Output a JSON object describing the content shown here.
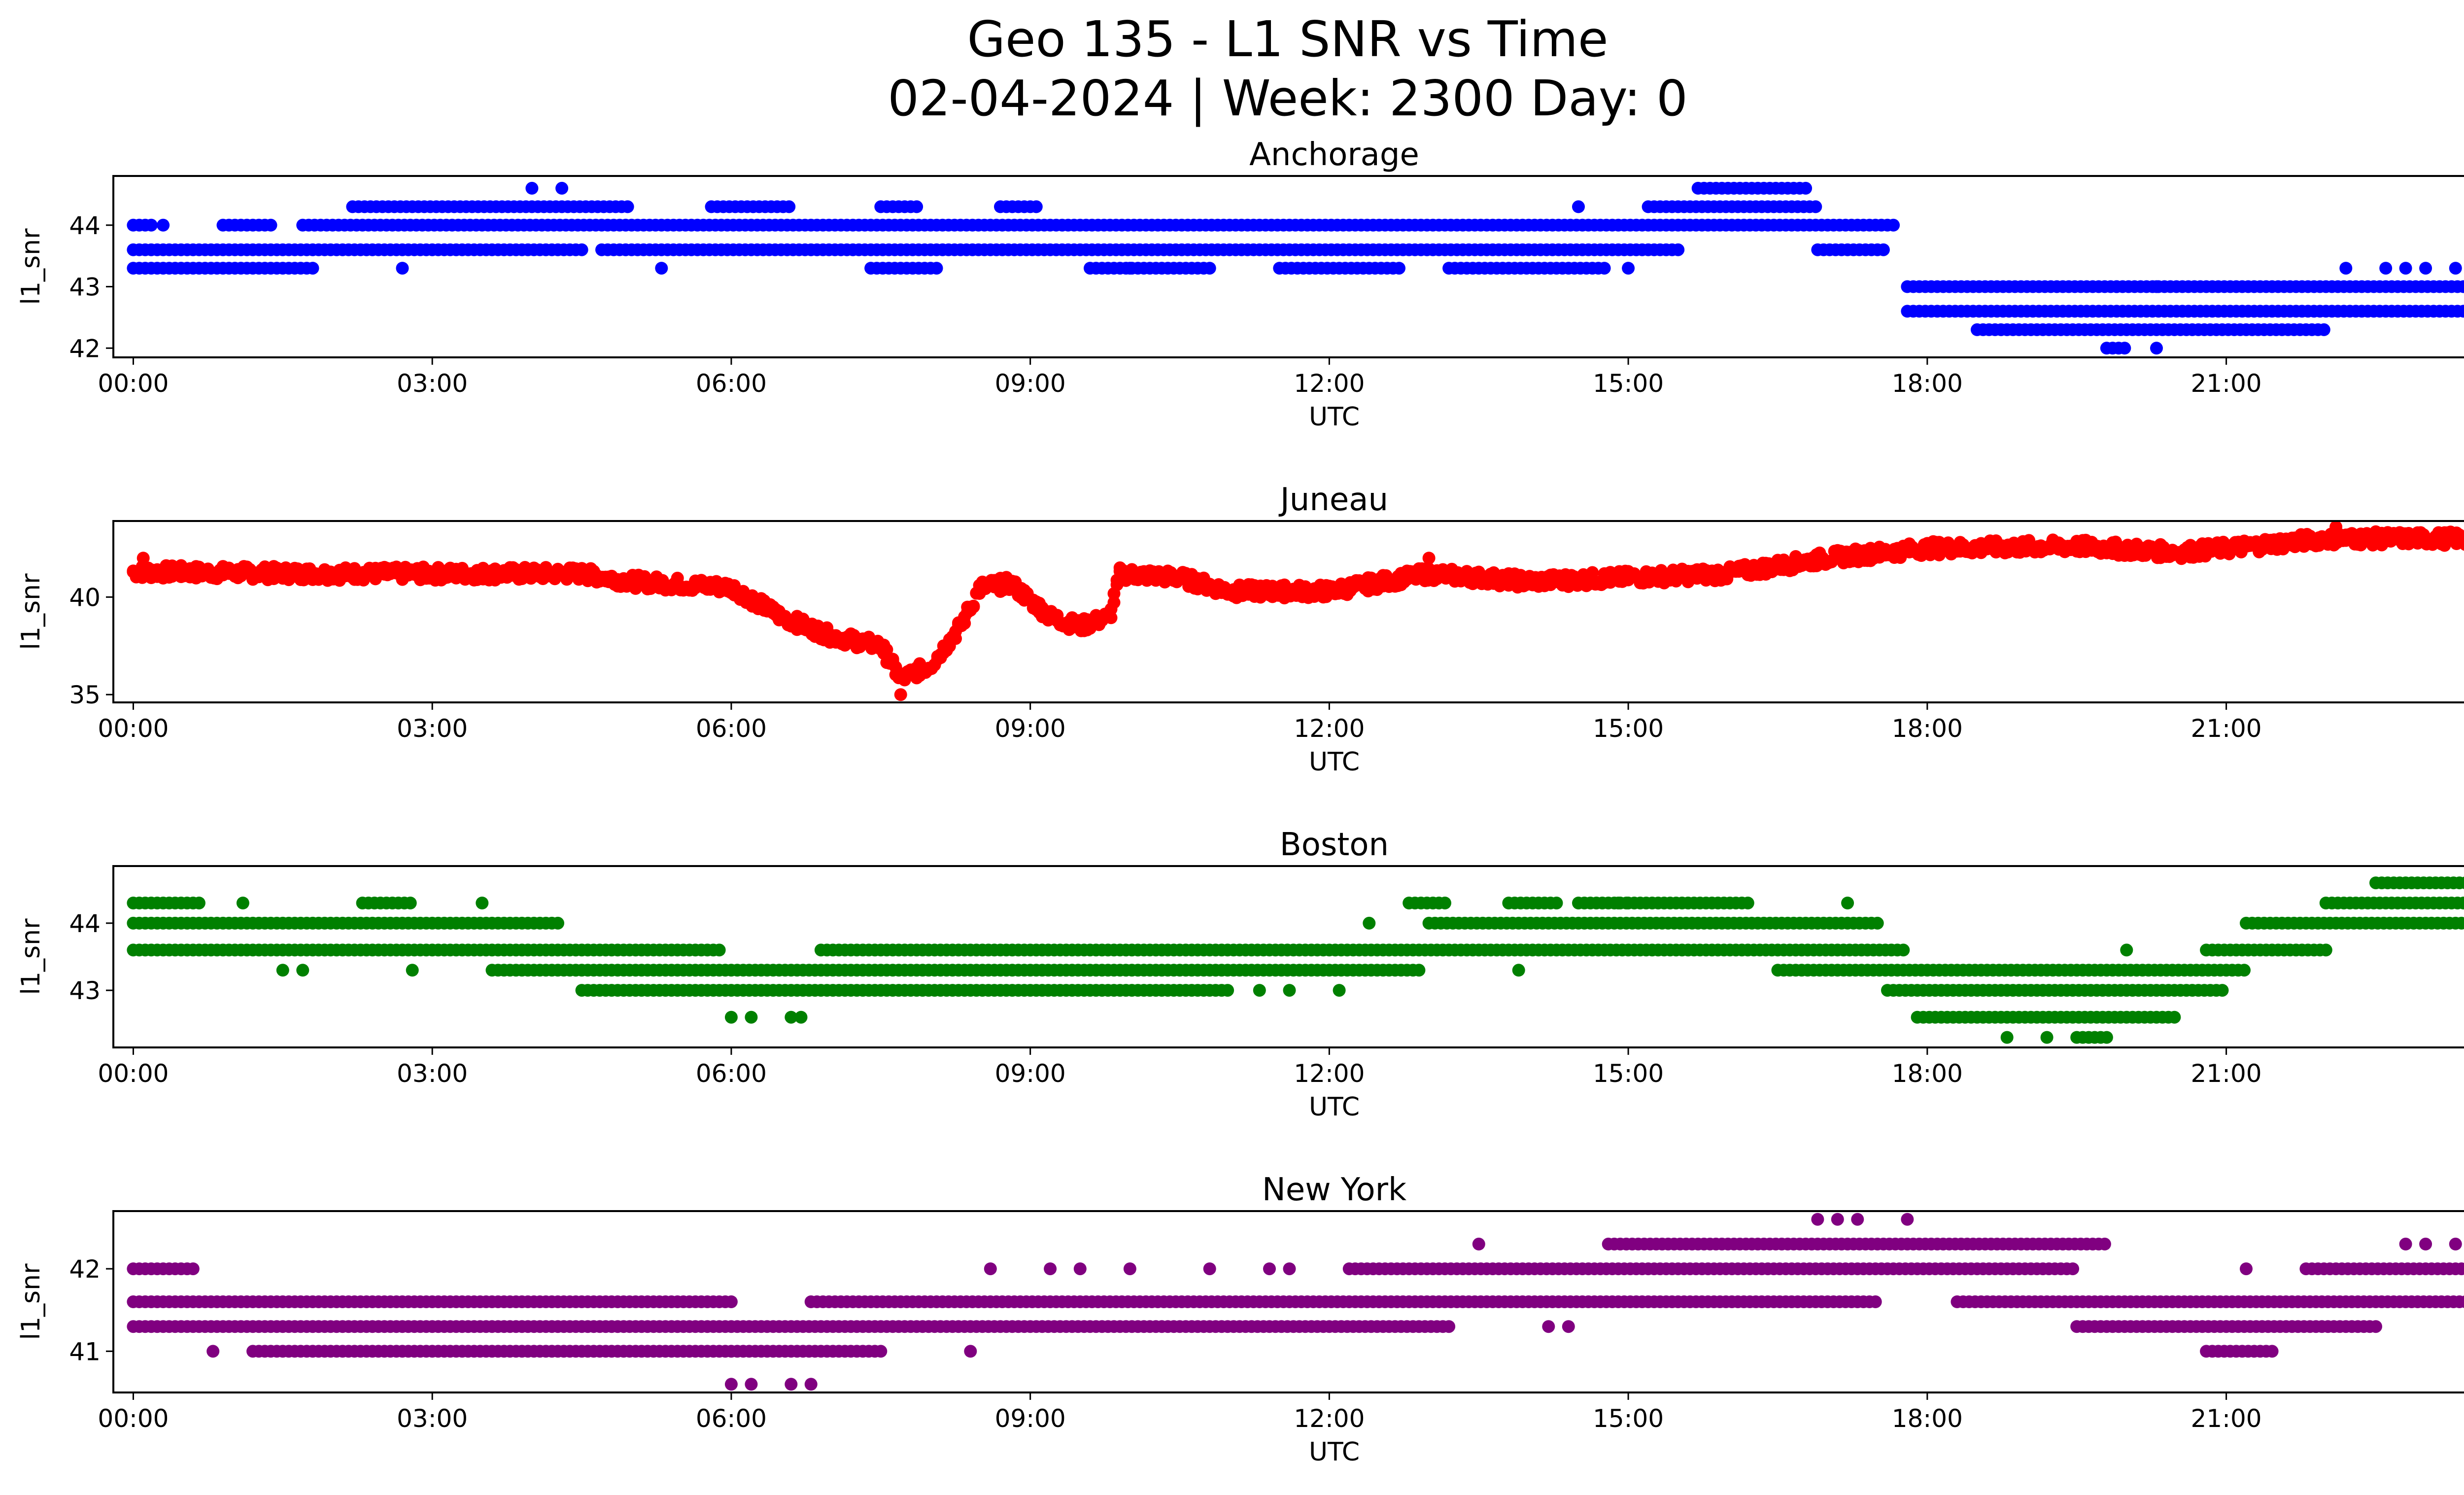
{
  "figure": {
    "title_line1": "Geo 135 - L1 SNR vs Time",
    "title_line2": "02-04-2024 | Week: 2300 Day: 0"
  },
  "chart_data": [
    {
      "type": "scatter",
      "title": "Anchorage",
      "xlabel": "UTC",
      "ylabel": "l1_snr",
      "color": "#0000ff",
      "x_unit": "hours",
      "x_ticks": [
        "00:00",
        "03:00",
        "06:00",
        "09:00",
        "12:00",
        "15:00",
        "18:00",
        "21:00",
        "00:00"
      ],
      "xlim": [
        -0.2,
        24.3
      ],
      "ylim": [
        41.85,
        44.8
      ],
      "y_ticks": [
        42,
        43,
        44
      ],
      "series": [
        {
          "y": 43.3,
          "spans": [
            [
              0.0,
              1.8
            ],
            [
              7.4,
              8.1
            ],
            [
              9.6,
              10.8
            ],
            [
              11.5,
              12.7
            ],
            [
              13.2,
              14.8
            ]
          ]
        },
        {
          "y": 43.6,
          "spans": [
            [
              0.0,
              4.5
            ],
            [
              4.7,
              15.5
            ],
            [
              16.9,
              17.6
            ]
          ]
        },
        {
          "y": 44.0,
          "spans": [
            [
              0.0,
              0.2
            ],
            [
              0.9,
              1.4
            ],
            [
              1.7,
              17.7
            ]
          ]
        },
        {
          "y": 44.3,
          "spans": [
            [
              2.2,
              5.0
            ],
            [
              5.8,
              6.6
            ],
            [
              7.5,
              7.9
            ],
            [
              8.7,
              9.1
            ],
            [
              15.2,
              16.9
            ]
          ]
        },
        {
          "y": 44.6,
          "spans": [
            [
              15.7,
              16.8
            ]
          ]
        },
        {
          "y": 43.0,
          "spans": [
            [
              17.8,
              24.0
            ]
          ]
        },
        {
          "y": 42.6,
          "spans": [
            [
              17.8,
              24.0
            ]
          ]
        },
        {
          "y": 42.3,
          "spans": [
            [
              18.5,
              22.0
            ]
          ]
        },
        {
          "y": 42.0,
          "spans": [
            [
              19.8,
              20.0
            ]
          ]
        }
      ],
      "points": [
        [
          0.3,
          44.0
        ],
        [
          4.0,
          44.6
        ],
        [
          4.3,
          44.6
        ],
        [
          2.7,
          43.3
        ],
        [
          5.3,
          43.3
        ],
        [
          10.0,
          43.3
        ],
        [
          14.5,
          44.3
        ],
        [
          15.0,
          43.3
        ],
        [
          19.9,
          43.0
        ],
        [
          20.3,
          43.0
        ],
        [
          22.2,
          43.3
        ],
        [
          22.6,
          43.3
        ],
        [
          22.8,
          43.3
        ],
        [
          23.0,
          43.3
        ],
        [
          23.3,
          43.3
        ],
        [
          20.3,
          42.0
        ],
        [
          23.8,
          42.3
        ]
      ]
    },
    {
      "type": "scatter",
      "title": "Juneau",
      "xlabel": "UTC",
      "ylabel": "l1_snr",
      "color": "#ff0000",
      "x_unit": "hours",
      "x_ticks": [
        "00:00",
        "03:00",
        "06:00",
        "09:00",
        "12:00",
        "15:00",
        "18:00",
        "21:00",
        "00:00"
      ],
      "xlim": [
        -0.2,
        24.3
      ],
      "ylim": [
        34.6,
        43.9
      ],
      "y_ticks": [
        35,
        40
      ],
      "profile": [
        [
          0.0,
          41.3
        ],
        [
          2.0,
          41.2
        ],
        [
          4.5,
          41.2
        ],
        [
          5.0,
          40.8
        ],
        [
          6.0,
          40.5
        ],
        [
          6.5,
          39.0
        ],
        [
          7.0,
          38.0
        ],
        [
          7.5,
          37.5
        ],
        [
          7.7,
          35.8
        ],
        [
          8.0,
          36.5
        ],
        [
          8.3,
          38.5
        ],
        [
          8.5,
          40.5
        ],
        [
          8.8,
          40.7
        ],
        [
          9.2,
          39.0
        ],
        [
          9.5,
          38.5
        ],
        [
          9.8,
          39.0
        ],
        [
          9.9,
          41.2
        ],
        [
          10.5,
          41.0
        ],
        [
          11.0,
          40.3
        ],
        [
          12.0,
          40.3
        ],
        [
          13.0,
          41.2
        ],
        [
          14.0,
          40.8
        ],
        [
          15.0,
          41.0
        ],
        [
          16.0,
          41.2
        ],
        [
          17.0,
          42.0
        ],
        [
          18.0,
          42.5
        ],
        [
          19.5,
          42.6
        ],
        [
          20.5,
          42.3
        ],
        [
          21.0,
          42.5
        ],
        [
          22.0,
          43.0
        ],
        [
          24.0,
          43.0
        ]
      ],
      "spread": 0.35,
      "points": [
        [
          0.1,
          42.0
        ],
        [
          7.7,
          35.0
        ],
        [
          13.0,
          42.0
        ],
        [
          22.1,
          43.6
        ]
      ]
    },
    {
      "type": "scatter",
      "title": "Boston",
      "xlabel": "UTC",
      "ylabel": "l1_snr",
      "color": "#008000",
      "x_unit": "hours",
      "x_ticks": [
        "00:00",
        "03:00",
        "06:00",
        "09:00",
        "12:00",
        "15:00",
        "18:00",
        "21:00",
        "00:00"
      ],
      "xlim": [
        -0.2,
        24.3
      ],
      "ylim": [
        42.15,
        44.85
      ],
      "y_ticks": [
        43,
        44
      ],
      "series": [
        {
          "y": 44.3,
          "spans": [
            [
              0.0,
              0.7
            ],
            [
              2.3,
              2.8
            ],
            [
              12.8,
              13.2
            ],
            [
              13.8,
              14.3
            ],
            [
              14.5,
              15.0
            ],
            [
              15.0,
              16.2
            ],
            [
              22.0,
              24.0
            ]
          ]
        },
        {
          "y": 44.0,
          "spans": [
            [
              0.0,
              4.3
            ],
            [
              13.0,
              17.5
            ],
            [
              21.2,
              24.0
            ]
          ]
        },
        {
          "y": 43.6,
          "spans": [
            [
              0.0,
              5.9
            ],
            [
              6.9,
              17.8
            ],
            [
              20.8,
              22.0
            ]
          ]
        },
        {
          "y": 43.3,
          "spans": [
            [
              3.6,
              12.9
            ],
            [
              16.5,
              21.2
            ]
          ]
        },
        {
          "y": 43.0,
          "spans": [
            [
              4.5,
              11.0
            ],
            [
              17.6,
              21.0
            ]
          ]
        },
        {
          "y": 42.6,
          "spans": [
            [
              17.9,
              20.5
            ]
          ]
        },
        {
          "y": 42.3,
          "spans": [
            [
              19.5,
              19.8
            ]
          ]
        },
        {
          "y": 44.6,
          "spans": [
            [
              22.5,
              24.0
            ]
          ]
        }
      ],
      "points": [
        [
          1.1,
          44.3
        ],
        [
          3.5,
          44.3
        ],
        [
          1.5,
          43.3
        ],
        [
          1.7,
          43.3
        ],
        [
          2.8,
          43.3
        ],
        [
          6.0,
          42.6
        ],
        [
          6.2,
          42.6
        ],
        [
          6.6,
          42.6
        ],
        [
          6.7,
          42.6
        ],
        [
          11.3,
          43.0
        ],
        [
          11.6,
          43.0
        ],
        [
          12.1,
          43.0
        ],
        [
          13.9,
          43.3
        ],
        [
          14.9,
          44.3
        ],
        [
          17.2,
          44.3
        ],
        [
          12.4,
          44.0
        ],
        [
          18.8,
          42.3
        ],
        [
          19.2,
          42.3
        ],
        [
          20.0,
          43.6
        ],
        [
          23.8,
          44.0
        ]
      ]
    },
    {
      "type": "scatter",
      "title": "New York",
      "xlabel": "UTC",
      "ylabel": "l1_snr",
      "color": "#800080",
      "x_unit": "hours",
      "x_ticks": [
        "00:00",
        "03:00",
        "06:00",
        "09:00",
        "12:00",
        "15:00",
        "18:00",
        "21:00",
        "00:00"
      ],
      "xlim": [
        -0.2,
        24.3
      ],
      "ylim": [
        40.5,
        42.7
      ],
      "y_ticks": [
        41,
        42
      ],
      "series": [
        {
          "y": 42.0,
          "spans": [
            [
              0.0,
              0.6
            ],
            [
              12.2,
              19.5
            ],
            [
              21.8,
              24.0
            ]
          ]
        },
        {
          "y": 41.6,
          "spans": [
            [
              0.0,
              6.0
            ],
            [
              6.8,
              17.5
            ],
            [
              18.3,
              24.0
            ]
          ]
        },
        {
          "y": 41.3,
          "spans": [
            [
              0.0,
              13.2
            ],
            [
              19.5,
              22.5
            ]
          ]
        },
        {
          "y": 41.0,
          "spans": [
            [
              1.2,
              7.5
            ],
            [
              20.8,
              21.5
            ]
          ]
        },
        {
          "y": 42.3,
          "spans": [
            [
              14.8,
              19.8
            ]
          ]
        }
      ],
      "points": [
        [
          0.8,
          41.0
        ],
        [
          8.4,
          41.0
        ],
        [
          8.6,
          42.0
        ],
        [
          9.2,
          42.0
        ],
        [
          9.5,
          42.0
        ],
        [
          10.0,
          42.0
        ],
        [
          10.8,
          42.0
        ],
        [
          11.4,
          42.0
        ],
        [
          11.6,
          42.0
        ],
        [
          13.5,
          42.3
        ],
        [
          14.2,
          41.3
        ],
        [
          14.4,
          41.3
        ],
        [
          6.0,
          40.6
        ],
        [
          6.2,
          40.6
        ],
        [
          6.6,
          40.6
        ],
        [
          6.8,
          40.6
        ],
        [
          16.9,
          42.6
        ],
        [
          17.1,
          42.6
        ],
        [
          17.3,
          42.6
        ],
        [
          17.8,
          42.6
        ],
        [
          21.2,
          42.0
        ],
        [
          22.8,
          42.3
        ],
        [
          23.0,
          42.3
        ],
        [
          23.3,
          42.3
        ],
        [
          23.5,
          41.3
        ],
        [
          23.7,
          41.3
        ]
      ]
    }
  ]
}
